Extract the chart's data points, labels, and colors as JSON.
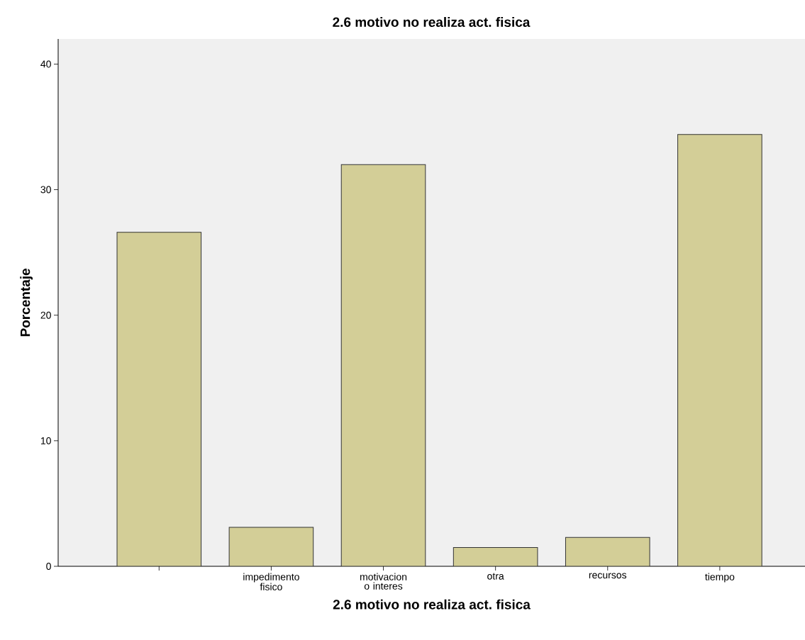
{
  "chart_data": {
    "type": "bar",
    "title": "2.6 motivo no realiza act. fisica",
    "xlabel": "2.6 motivo no realiza act. fisica",
    "ylabel": "Porcentaje",
    "categories": [
      null,
      "impedimento fisico",
      "motivacion o interes",
      "otra",
      "recursos",
      "tiempo"
    ],
    "values": [
      26.6,
      3.1,
      32.0,
      1.5,
      2.3,
      34.4
    ],
    "color": "#d3ce97",
    "ylim": [
      0,
      42
    ],
    "yticks": [
      0,
      10,
      20,
      30,
      40
    ],
    "grid": false
  }
}
